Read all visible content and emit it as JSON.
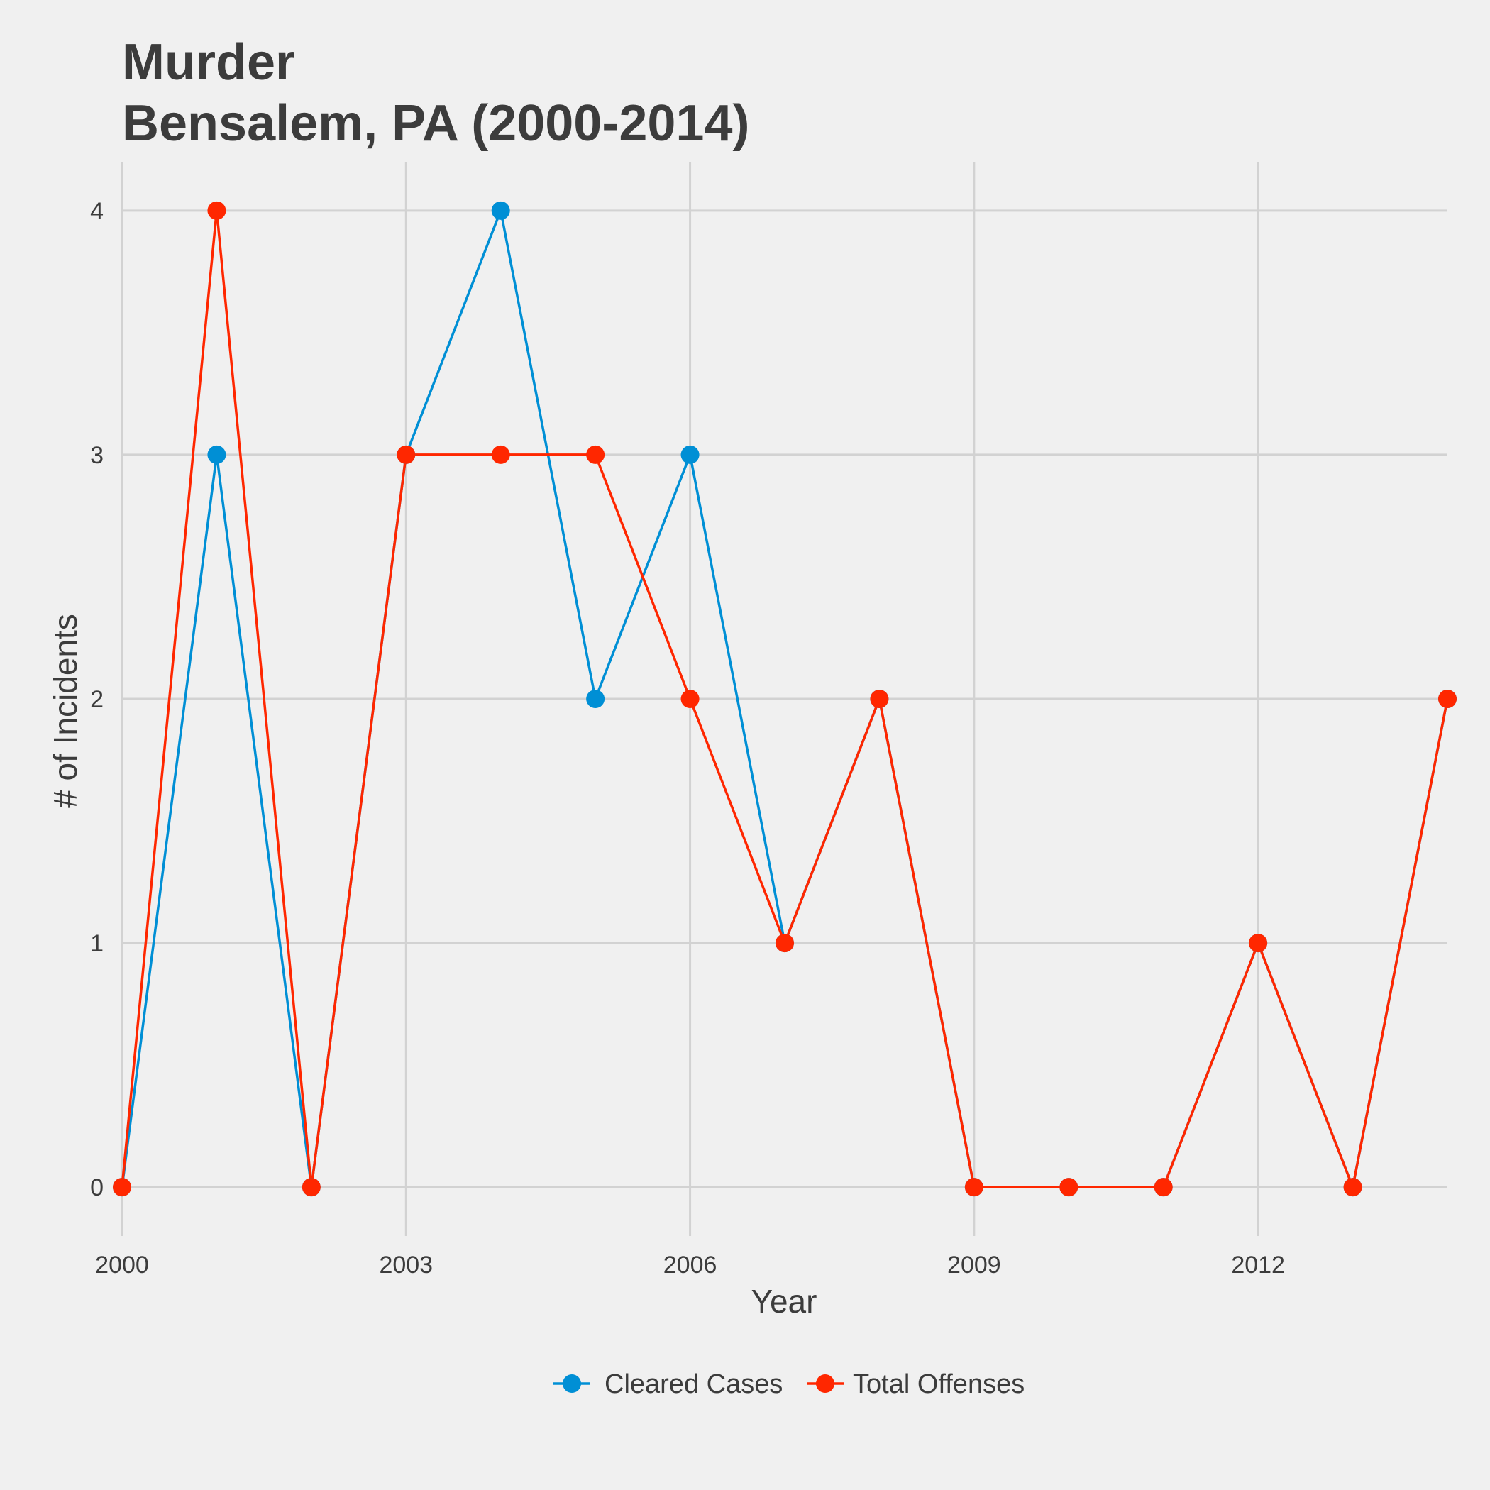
{
  "chart_data": {
    "type": "line",
    "title": "Murder",
    "subtitle": "Bensalem, PA (2000-2014)",
    "xlabel": "Year",
    "ylabel": "# of Incidents",
    "x": [
      2000,
      2001,
      2002,
      2003,
      2004,
      2005,
      2006,
      2007,
      2008,
      2009,
      2010,
      2011,
      2012,
      2013,
      2014
    ],
    "x_ticks": [
      2000,
      2003,
      2006,
      2009,
      2012
    ],
    "y_ticks": [
      0,
      1,
      2,
      3,
      4
    ],
    "xlim": [
      2000,
      2014
    ],
    "ylim": [
      -0.2,
      4.2
    ],
    "grid": true,
    "legend_position": "bottom",
    "series": [
      {
        "name": "Cleared Cases",
        "color": "#008fd5",
        "values": [
          0,
          3,
          0,
          3,
          4,
          2,
          3,
          1,
          2,
          0,
          0,
          0,
          1,
          0,
          2
        ]
      },
      {
        "name": "Total Offenses",
        "color": "#ff2700",
        "values": [
          0,
          4,
          0,
          3,
          3,
          3,
          2,
          1,
          2,
          0,
          0,
          0,
          1,
          0,
          2
        ]
      }
    ]
  }
}
